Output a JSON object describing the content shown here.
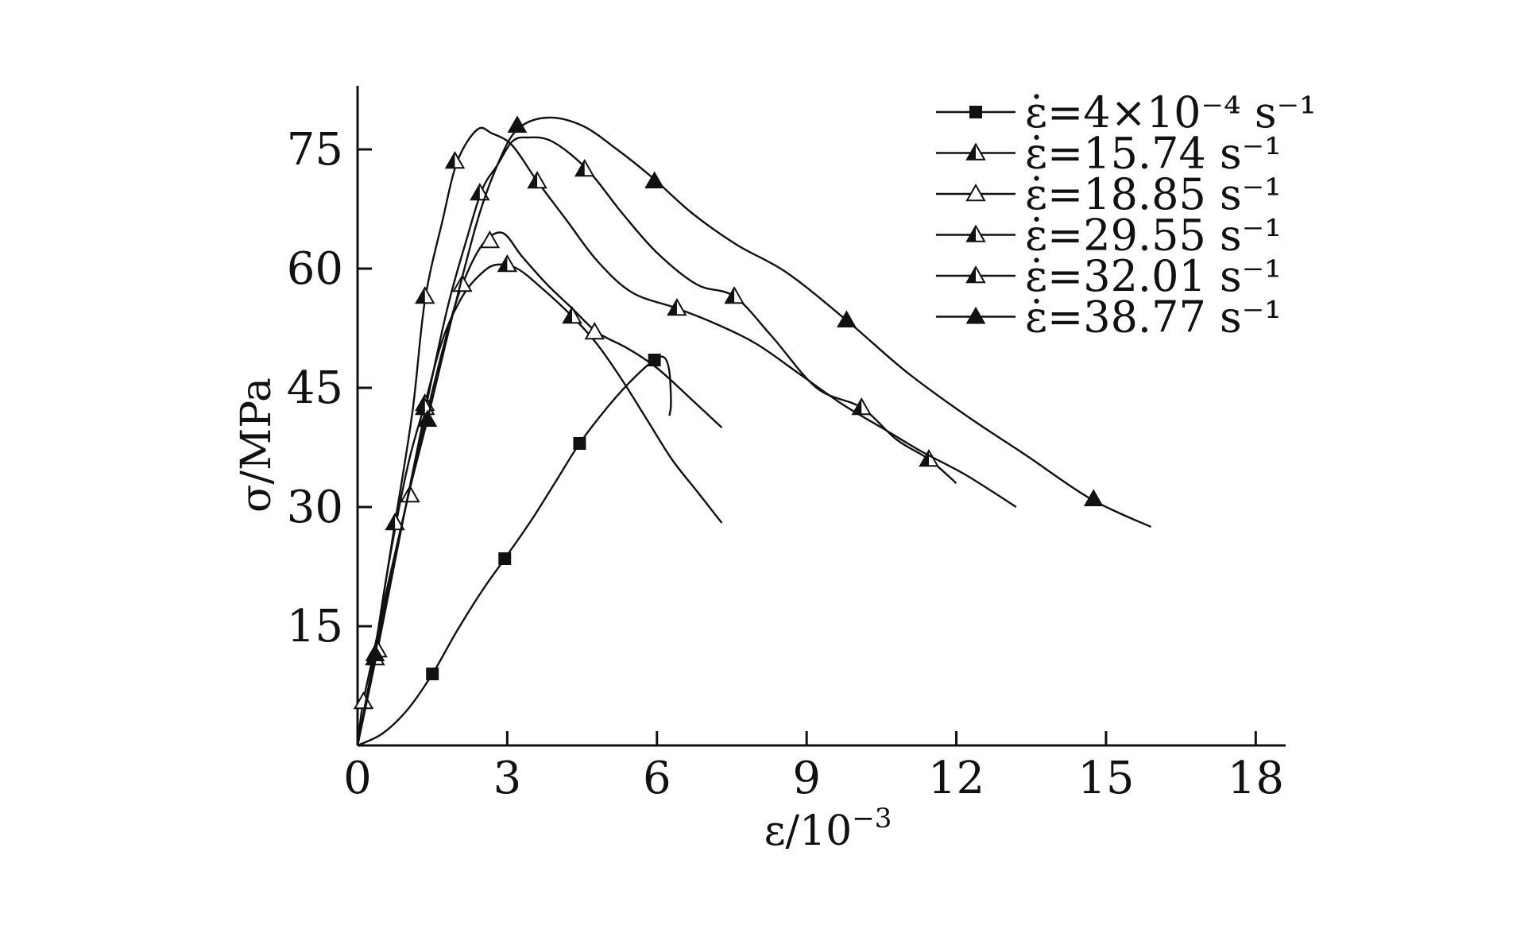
{
  "chart_data": {
    "type": "line",
    "title": "",
    "xlabel": "ε/10",
    "xlabel_sup": "−3",
    "ylabel": "σ/MPa",
    "xlim": [
      0,
      18.6
    ],
    "ylim": [
      0,
      83
    ],
    "xticks": [
      0,
      3,
      6,
      9,
      12,
      15,
      18
    ],
    "xtick_labels": [
      "0",
      "3",
      "6",
      "9",
      "12",
      "15",
      "18"
    ],
    "yticks": [
      15,
      30,
      45,
      60,
      75
    ],
    "ytick_labels": [
      "15",
      "30",
      "45",
      "60",
      "75"
    ],
    "grid": false,
    "legend_position": "top-right",
    "series": [
      {
        "name": "ε̇=4×10⁻⁴ s⁻¹",
        "marker": "square",
        "curve": [
          [
            0,
            0
          ],
          [
            0.5,
            1.5
          ],
          [
            1.0,
            4.5
          ],
          [
            1.5,
            9
          ],
          [
            2.0,
            14.5
          ],
          [
            2.5,
            19.5
          ],
          [
            2.95,
            23.5
          ],
          [
            3.5,
            28.5
          ],
          [
            4.0,
            33.5
          ],
          [
            4.45,
            38
          ],
          [
            5.0,
            42.5
          ],
          [
            5.5,
            46
          ],
          [
            5.95,
            48.5
          ],
          [
            6.15,
            48.8
          ],
          [
            6.25,
            47
          ],
          [
            6.28,
            43
          ],
          [
            6.25,
            41.5
          ]
        ],
        "markers": [
          [
            1.5,
            9
          ],
          [
            2.95,
            23.5
          ],
          [
            4.45,
            38
          ],
          [
            5.95,
            48.5
          ]
        ]
      },
      {
        "name": "ε̇=15.74 s⁻¹",
        "marker": "half-triangle",
        "curve": [
          [
            0,
            0
          ],
          [
            0.3,
            10
          ],
          [
            0.6,
            22
          ],
          [
            1.0,
            35
          ],
          [
            1.35,
            43
          ],
          [
            1.7,
            51
          ],
          [
            2.1,
            56.5
          ],
          [
            2.5,
            59.5
          ],
          [
            2.8,
            60.5
          ],
          [
            3.2,
            60
          ],
          [
            3.7,
            57.5
          ],
          [
            4.3,
            54
          ],
          [
            4.8,
            50.5
          ],
          [
            5.3,
            46
          ],
          [
            5.8,
            41
          ],
          [
            6.3,
            36
          ],
          [
            6.8,
            32
          ],
          [
            7.3,
            28
          ]
        ],
        "markers": [
          [
            0.35,
            11
          ],
          [
            1.35,
            43
          ],
          [
            3.0,
            60.5
          ],
          [
            4.3,
            54
          ]
        ]
      },
      {
        "name": "ε̇=18.85 s⁻¹",
        "marker": "open-triangle",
        "curve": [
          [
            0,
            0
          ],
          [
            0.1,
            5
          ],
          [
            0.3,
            11
          ],
          [
            0.6,
            20
          ],
          [
            1.0,
            31
          ],
          [
            1.4,
            42
          ],
          [
            1.8,
            52
          ],
          [
            2.1,
            58
          ],
          [
            2.5,
            63
          ],
          [
            2.9,
            64.5
          ],
          [
            3.3,
            61.5
          ],
          [
            3.8,
            58
          ],
          [
            4.3,
            55
          ],
          [
            4.8,
            52
          ],
          [
            5.4,
            50
          ],
          [
            6.0,
            47.5
          ],
          [
            6.7,
            43.5
          ],
          [
            7.3,
            40
          ]
        ],
        "markers": [
          [
            0.12,
            5.5
          ],
          [
            1.05,
            31.5
          ],
          [
            2.1,
            58
          ],
          [
            2.65,
            63.5
          ],
          [
            4.75,
            52
          ]
        ]
      },
      {
        "name": "ε̇=29.55 s⁻¹",
        "marker": "half-triangle",
        "curve": [
          [
            0,
            0
          ],
          [
            0.4,
            12
          ],
          [
            0.9,
            28
          ],
          [
            1.35,
            42
          ],
          [
            1.8,
            55
          ],
          [
            2.2,
            64
          ],
          [
            2.5,
            70
          ],
          [
            2.8,
            73
          ],
          [
            3.1,
            76
          ],
          [
            3.4,
            76.5
          ],
          [
            3.9,
            76
          ],
          [
            4.6,
            72.5
          ],
          [
            5.3,
            67
          ],
          [
            6.0,
            62
          ],
          [
            6.8,
            58
          ],
          [
            7.55,
            56.5
          ],
          [
            8.3,
            51.5
          ],
          [
            9.2,
            45
          ],
          [
            10.1,
            42.5
          ],
          [
            10.8,
            38.5
          ],
          [
            11.45,
            36
          ],
          [
            12.0,
            33
          ]
        ],
        "markers": [
          [
            0.4,
            12
          ],
          [
            1.35,
            42.5
          ],
          [
            2.45,
            69.5
          ],
          [
            4.55,
            72.5
          ],
          [
            7.55,
            56.5
          ],
          [
            10.1,
            42.5
          ],
          [
            11.45,
            36
          ]
        ]
      },
      {
        "name": "ε̇=32.01 s⁻¹",
        "marker": "half-triangle",
        "curve": [
          [
            0,
            0
          ],
          [
            0.3,
            10
          ],
          [
            0.55,
            20
          ],
          [
            0.75,
            28
          ],
          [
            1.1,
            42
          ],
          [
            1.35,
            56
          ],
          [
            1.7,
            66
          ],
          [
            2.0,
            73.5
          ],
          [
            2.4,
            77.5
          ],
          [
            2.7,
            77
          ],
          [
            3.1,
            75.5
          ],
          [
            3.6,
            71
          ],
          [
            4.2,
            66
          ],
          [
            4.8,
            61
          ],
          [
            5.5,
            57
          ],
          [
            6.4,
            55
          ],
          [
            7.2,
            53
          ],
          [
            8.0,
            50.5
          ],
          [
            8.8,
            47
          ],
          [
            9.7,
            43
          ],
          [
            10.5,
            40
          ],
          [
            11.3,
            37
          ],
          [
            12.2,
            34
          ],
          [
            13.2,
            30
          ]
        ],
        "markers": [
          [
            0.75,
            28
          ],
          [
            1.35,
            56.5
          ],
          [
            1.95,
            73.5
          ],
          [
            3.6,
            71
          ],
          [
            6.4,
            55
          ]
        ]
      },
      {
        "name": "ε̇=38.77 s⁻¹",
        "marker": "filled-triangle",
        "curve": [
          [
            0,
            0
          ],
          [
            0.3,
            10
          ],
          [
            0.6,
            19
          ],
          [
            1.0,
            31
          ],
          [
            1.4,
            41
          ],
          [
            1.9,
            54
          ],
          [
            2.4,
            66
          ],
          [
            2.8,
            73
          ],
          [
            3.2,
            77.5
          ],
          [
            3.8,
            79
          ],
          [
            4.5,
            78
          ],
          [
            5.2,
            75
          ],
          [
            5.9,
            71.5
          ],
          [
            6.7,
            67
          ],
          [
            7.6,
            63
          ],
          [
            8.6,
            59.5
          ],
          [
            9.8,
            53.5
          ],
          [
            11.0,
            47
          ],
          [
            12.2,
            41.5
          ],
          [
            13.4,
            36.5
          ],
          [
            14.7,
            31
          ],
          [
            15.9,
            27.5
          ]
        ],
        "markers": [
          [
            0.35,
            11.5
          ],
          [
            1.4,
            41
          ],
          [
            3.2,
            78
          ],
          [
            5.95,
            71
          ],
          [
            9.8,
            53.5
          ],
          [
            14.75,
            31
          ]
        ]
      }
    ]
  }
}
